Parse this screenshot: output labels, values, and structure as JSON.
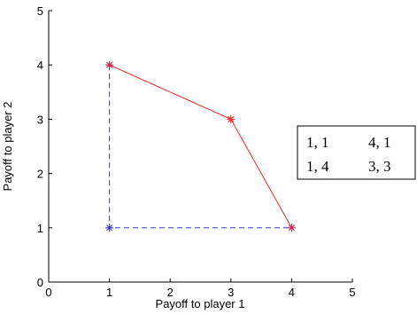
{
  "chart_data": {
    "type": "line",
    "title": "",
    "xlabel": "Payoff to player 1",
    "ylabel": "Payoff to player 2",
    "xlim": [
      0,
      5
    ],
    "ylim": [
      0,
      5
    ],
    "xticks": [
      "0",
      "1",
      "2",
      "3",
      "4",
      "5"
    ],
    "yticks": [
      "0",
      "1",
      "2",
      "3",
      "4",
      "5"
    ],
    "grid": false,
    "series": [
      {
        "style": "solid",
        "color": "#e8282a",
        "marker": "asterisk",
        "marker_color": "#e8282a",
        "x": [
          1,
          3,
          4
        ],
        "y": [
          4,
          3,
          1
        ]
      },
      {
        "style": "dashed",
        "color": "#3a37d6",
        "marker": "none",
        "x": [
          1,
          1,
          4
        ],
        "y": [
          4,
          1,
          1
        ]
      }
    ],
    "points": [
      {
        "x": 1,
        "y": 1,
        "marker": "asterisk",
        "color": "#3a37d6"
      },
      {
        "x": 1,
        "y": 4,
        "marker": "asterisk",
        "color": "#d01f4a"
      },
      {
        "x": 3,
        "y": 3,
        "marker": "asterisk",
        "color": "#e8282a"
      },
      {
        "x": 4,
        "y": 1,
        "marker": "asterisk",
        "color": "#d01f4a"
      }
    ],
    "annotation_table": {
      "rows": [
        [
          "1, 1",
          "4, 1"
        ],
        [
          "1, 4",
          "3, 3"
        ]
      ]
    }
  },
  "colors": {
    "axis": "#000000",
    "red": "#e8282a",
    "blue": "#3a37d6",
    "mixed": "#d01f4a"
  }
}
